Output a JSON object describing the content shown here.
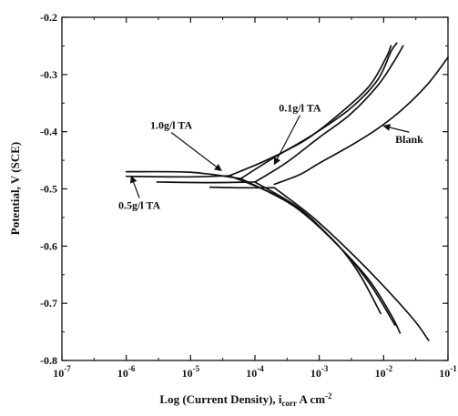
{
  "chart_data": {
    "type": "line",
    "title": "",
    "xlabel": "Log (Current Density), i",
    "xlabel_sub": "corr",
    "xlabel_unit": " A cm",
    "xlabel_sup": "-2",
    "ylabel": "Potential, V (SCE)",
    "x_scale": "log",
    "xlim": [
      1e-07,
      0.1
    ],
    "ylim": [
      -0.8,
      -0.2
    ],
    "x_ticks": [
      {
        "value": 1e-07,
        "base": "10",
        "exp": "-7"
      },
      {
        "value": 1e-06,
        "base": "10",
        "exp": "-6"
      },
      {
        "value": 1e-05,
        "base": "10",
        "exp": "-5"
      },
      {
        "value": 0.0001,
        "base": "10",
        "exp": "-4"
      },
      {
        "value": 0.001,
        "base": "10",
        "exp": "-3"
      },
      {
        "value": 0.01,
        "base": "10",
        "exp": "-2"
      },
      {
        "value": 0.1,
        "base": "10",
        "exp": "-1"
      }
    ],
    "y_ticks": [
      {
        "value": -0.8,
        "label": "-0.8"
      },
      {
        "value": -0.7,
        "label": "-0.7"
      },
      {
        "value": -0.6,
        "label": "-0.6"
      },
      {
        "value": -0.5,
        "label": "-0.5"
      },
      {
        "value": -0.4,
        "label": "-0.4"
      },
      {
        "value": -0.3,
        "label": "-0.3"
      },
      {
        "value": -0.2,
        "label": "-0.2"
      }
    ],
    "grid": false,
    "line_color": "#111111",
    "series": [
      {
        "name": "Blank",
        "anodic": [
          [
            0.0002,
            -0.492
          ],
          [
            0.0005,
            -0.475
          ],
          [
            0.001,
            -0.455
          ],
          [
            0.003,
            -0.425
          ],
          [
            0.008,
            -0.395
          ],
          [
            0.02,
            -0.36
          ],
          [
            0.05,
            -0.315
          ],
          [
            0.1,
            -0.27
          ]
        ],
        "baseline": [
          [
            2e-05,
            -0.497
          ],
          [
            6e-05,
            -0.498
          ],
          [
            0.0002,
            -0.498
          ]
        ],
        "cathodic": [
          [
            0.0002,
            -0.498
          ],
          [
            0.0008,
            -0.55
          ],
          [
            0.003,
            -0.61
          ],
          [
            0.01,
            -0.67
          ],
          [
            0.03,
            -0.73
          ],
          [
            0.05,
            -0.765
          ]
        ]
      },
      {
        "name": "0.1g/l TA",
        "anodic": [
          [
            0.0001,
            -0.488
          ],
          [
            0.0003,
            -0.455
          ],
          [
            0.001,
            -0.41
          ],
          [
            0.003,
            -0.37
          ],
          [
            0.008,
            -0.32
          ],
          [
            0.014,
            -0.28
          ],
          [
            0.02,
            -0.25
          ]
        ],
        "baseline": [
          [
            3e-06,
            -0.488
          ],
          [
            2e-05,
            -0.489
          ],
          [
            0.0001,
            -0.488
          ]
        ],
        "cathodic": [
          [
            0.0001,
            -0.488
          ],
          [
            0.0005,
            -0.535
          ],
          [
            0.002,
            -0.6
          ],
          [
            0.006,
            -0.66
          ],
          [
            0.013,
            -0.72
          ],
          [
            0.018,
            -0.752
          ]
        ]
      },
      {
        "name": "1.0g/l TA",
        "anodic": [
          [
            6e-05,
            -0.482
          ],
          [
            0.0002,
            -0.445
          ],
          [
            0.0008,
            -0.405
          ],
          [
            0.003,
            -0.36
          ],
          [
            0.008,
            -0.31
          ],
          [
            0.013,
            -0.26
          ],
          [
            0.016,
            -0.245
          ]
        ],
        "baseline": [
          [
            1e-06,
            -0.47
          ],
          [
            1e-05,
            -0.471
          ],
          [
            6e-05,
            -0.482
          ]
        ],
        "cathodic": [
          [
            6e-05,
            -0.482
          ],
          [
            0.0004,
            -0.53
          ],
          [
            0.002,
            -0.6
          ],
          [
            0.006,
            -0.665
          ],
          [
            0.015,
            -0.738
          ]
        ]
      },
      {
        "name": "0.5g/l TA",
        "anodic": [
          [
            4e-05,
            -0.477
          ],
          [
            0.00015,
            -0.45
          ],
          [
            0.0006,
            -0.415
          ],
          [
            0.002,
            -0.37
          ],
          [
            0.006,
            -0.32
          ],
          [
            0.011,
            -0.27
          ],
          [
            0.013,
            -0.25
          ]
        ],
        "baseline": [
          [
            1e-06,
            -0.478
          ],
          [
            1e-05,
            -0.479
          ],
          [
            4e-05,
            -0.477
          ]
        ],
        "cathodic": [
          [
            4e-05,
            -0.477
          ],
          [
            0.0003,
            -0.52
          ],
          [
            0.0015,
            -0.585
          ],
          [
            0.004,
            -0.645
          ],
          [
            0.009,
            -0.718
          ]
        ]
      }
    ],
    "annotations": [
      {
        "text": "0.1g/l TA",
        "x": 0.0005,
        "y": -0.365,
        "arrow_to": [
          0.0002,
          -0.457
        ]
      },
      {
        "text": "1.0g/l TA",
        "x": 5e-06,
        "y": -0.395,
        "arrow_to": [
          3e-05,
          -0.468
        ]
      },
      {
        "text": "Blank",
        "x": 0.025,
        "y": -0.42,
        "arrow_to": [
          0.01,
          -0.39
        ]
      },
      {
        "text": "0.5g/l TA",
        "x": 1.6e-06,
        "y": -0.535,
        "arrow_to": [
          1.2e-06,
          -0.478
        ]
      }
    ]
  }
}
